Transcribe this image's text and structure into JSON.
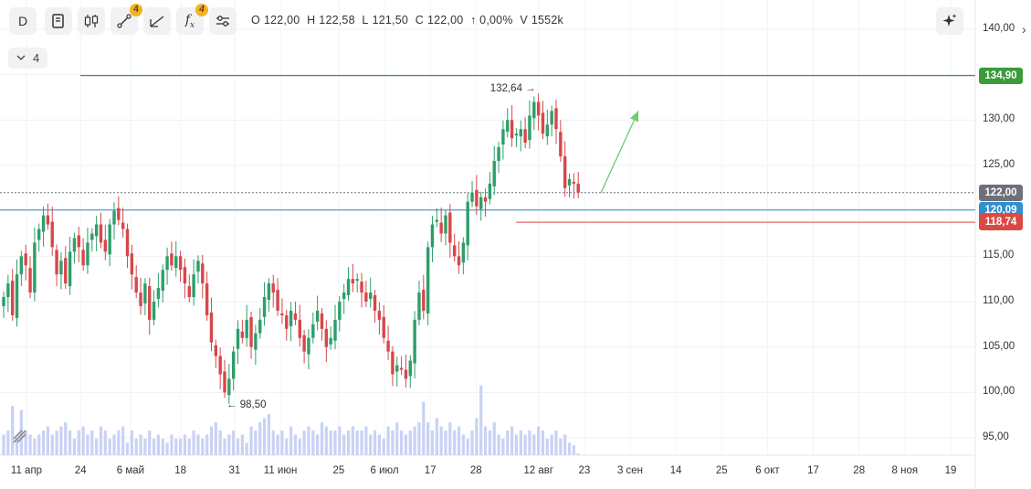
{
  "toolbar": {
    "interval_label": "D",
    "drawing_badge": "4",
    "indicator_badge": "4",
    "collapse_count": "4"
  },
  "ohlc": {
    "open_label": "O",
    "open": "122,00",
    "high_label": "H",
    "high": "122,58",
    "low_label": "L",
    "low": "121,50",
    "close_label": "C",
    "close": "122,00",
    "change": "↑ 0,00%",
    "volume_label": "V",
    "volume": "1552k"
  },
  "colors": {
    "up": "#2e9e6a",
    "down": "#d7474b",
    "volume": "#c9d2f5",
    "resistance": "#3a9b3a",
    "support_blue": "#2f8fcf",
    "support_red": "#d94a44",
    "last_price": "#6c7079",
    "arrow": "#6ccf6c"
  },
  "chart_data": {
    "type": "candlestick",
    "y_axis": {
      "ticks": [
        "140,00",
        "135,00",
        "130,00",
        "125,00",
        "120,00",
        "115,00",
        "110,00",
        "105,00",
        "100,00",
        "95,00"
      ],
      "tick_values": [
        140,
        135,
        130,
        125,
        120,
        115,
        110,
        105,
        100,
        95
      ],
      "ylim": [
        92,
        142
      ]
    },
    "x_axis": {
      "ticks": [
        "11 апр",
        "24",
        "6 май",
        "18",
        "31",
        "11 июн",
        "25",
        "6 июл",
        "17",
        "28",
        "12 авг",
        "23",
        "3 сен",
        "14",
        "25",
        "6 окт",
        "17",
        "28",
        "8 ноя",
        "19"
      ],
      "tick_dates": [
        "2024-04-11",
        "2024-04-24",
        "2024-05-06",
        "2024-05-18",
        "2024-05-31",
        "2024-06-11",
        "2024-06-25",
        "2024-07-06",
        "2024-07-17",
        "2024-07-28",
        "2024-08-12",
        "2024-08-23",
        "2024-09-03",
        "2024-09-14",
        "2024-09-25",
        "2024-10-06",
        "2024-10-17",
        "2024-10-28",
        "2024-11-08",
        "2024-11-19"
      ]
    },
    "price_lines": [
      {
        "name": "resistance",
        "value": 134.9,
        "label": "134,90"
      },
      {
        "name": "last-price",
        "value": 122.0,
        "label": "122,00"
      },
      {
        "name": "support-blue",
        "value": 120.09,
        "label": "120,09"
      },
      {
        "name": "support-red",
        "value": 118.74,
        "label": "118,74"
      }
    ],
    "annotations": {
      "high_label": "132,64",
      "low_label": "98,50"
    },
    "projection": {
      "from": [
        122.0,
        "2024-08-27"
      ],
      "to": [
        131.0,
        "2024-09-05"
      ]
    },
    "closes": [
      110.5,
      112.0,
      108.5,
      113.0,
      115.0,
      114.0,
      111.0,
      116.5,
      118.0,
      119.5,
      118.5,
      116.0,
      113.0,
      114.5,
      112.0,
      115.5,
      117.0,
      116.0,
      114.0,
      116.5,
      117.5,
      118.5,
      116.5,
      115.5,
      118.5,
      120.0,
      119.0,
      118.0,
      115.0,
      113.0,
      111.0,
      109.5,
      112.0,
      108.0,
      110.0,
      111.5,
      113.5,
      115.0,
      114.0,
      115.0,
      113.5,
      112.0,
      110.5,
      113.0,
      114.5,
      112.0,
      108.5,
      105.5,
      104.0,
      102.0,
      100.0,
      101.5,
      104.5,
      107.0,
      106.0,
      108.0,
      105.0,
      106.5,
      108.0,
      110.5,
      112.0,
      111.0,
      109.0,
      108.5,
      107.0,
      109.0,
      108.0,
      106.0,
      104.5,
      106.0,
      107.5,
      109.0,
      107.0,
      105.0,
      106.0,
      108.0,
      110.0,
      111.0,
      112.5,
      112.0,
      112.5,
      111.0,
      110.0,
      111.0,
      109.0,
      108.0,
      106.0,
      104.5,
      102.0,
      103.0,
      102.5,
      101.5,
      103.5,
      108.0,
      111.0,
      109.0,
      116.0,
      118.5,
      119.0,
      117.5,
      119.5,
      116.5,
      115.0,
      114.0,
      116.5,
      121.0,
      122.0,
      120.5,
      121.5,
      121.0,
      123.0,
      125.5,
      127.0,
      129.0,
      130.0,
      128.0,
      128.5,
      129.0,
      127.5,
      130.5,
      132.0,
      130.5,
      128.5,
      129.5,
      131.0,
      129.0,
      126.0,
      122.5,
      123.5,
      123.0,
      122.0
    ],
    "volume_scale": "relative 0-1",
    "volumes": [
      0.25,
      0.3,
      0.6,
      0.2,
      0.55,
      0.3,
      0.25,
      0.2,
      0.25,
      0.3,
      0.35,
      0.25,
      0.3,
      0.35,
      0.4,
      0.3,
      0.2,
      0.3,
      0.35,
      0.25,
      0.3,
      0.2,
      0.35,
      0.3,
      0.2,
      0.25,
      0.3,
      0.35,
      0.15,
      0.3,
      0.2,
      0.25,
      0.2,
      0.3,
      0.2,
      0.25,
      0.2,
      0.15,
      0.25,
      0.2,
      0.2,
      0.25,
      0.2,
      0.3,
      0.25,
      0.2,
      0.25,
      0.35,
      0.4,
      0.3,
      0.2,
      0.25,
      0.3,
      0.2,
      0.25,
      0.15,
      0.35,
      0.3,
      0.4,
      0.45,
      0.5,
      0.3,
      0.25,
      0.3,
      0.2,
      0.35,
      0.25,
      0.2,
      0.3,
      0.35,
      0.3,
      0.25,
      0.4,
      0.35,
      0.3,
      0.3,
      0.35,
      0.25,
      0.3,
      0.35,
      0.3,
      0.3,
      0.35,
      0.25,
      0.3,
      0.25,
      0.2,
      0.35,
      0.3,
      0.4,
      0.3,
      0.25,
      0.3,
      0.35,
      0.4,
      0.65,
      0.4,
      0.3,
      0.45,
      0.35,
      0.3,
      0.4,
      0.3,
      0.35,
      0.25,
      0.2,
      0.3,
      0.45,
      0.85,
      0.35,
      0.3,
      0.4,
      0.25,
      0.2,
      0.3,
      0.35,
      0.25,
      0.3,
      0.25,
      0.3,
      0.25,
      0.35,
      0.3,
      0.2,
      0.25,
      0.3,
      0.2,
      0.25,
      0.15,
      0.12,
      0.02
    ]
  }
}
